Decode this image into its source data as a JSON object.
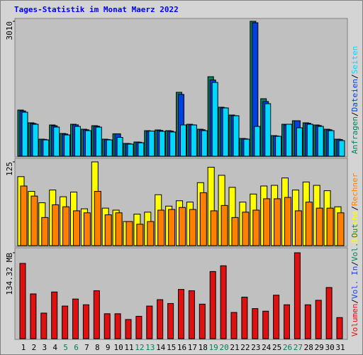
{
  "chart_data": {
    "type": "bar",
    "title": "Tages-Statistik im Monat Maerz 2022",
    "legend_separator": "/",
    "categories": [
      "1",
      "2",
      "3",
      "4",
      "5",
      "6",
      "7",
      "8",
      "9",
      "10",
      "11",
      "12",
      "13",
      "14",
      "15",
      "16",
      "17",
      "18",
      "19",
      "20",
      "21",
      "22",
      "23",
      "24",
      "25",
      "26",
      "27",
      "28",
      "29",
      "30",
      "31"
    ],
    "category_colors": [
      "#000000",
      "#000000",
      "#000000",
      "#000000",
      "#00805a",
      "#00805a",
      "#000000",
      "#000000",
      "#000000",
      "#000000",
      "#000000",
      "#00805a",
      "#00805a",
      "#000000",
      "#000000",
      "#000000",
      "#000000",
      "#000000",
      "#00805a",
      "#00805a",
      "#000000",
      "#000000",
      "#000000",
      "#000000",
      "#000000",
      "#00805a",
      "#00805a",
      "#000000",
      "#000000",
      "#000000",
      "#000000"
    ],
    "panels": [
      {
        "ylim": [
          0,
          3010
        ],
        "yticks": [
          3010
        ],
        "series": [
          {
            "name": "Anfragen",
            "color": "#008060",
            "values": [
              1030,
              745,
              380,
              697,
              507,
              713,
              602,
              681,
              380,
              500,
              285,
              317,
              570,
              586,
              570,
              1426,
              713,
              602,
              1774,
              1093,
              919,
              396,
              3010,
              1283,
              459,
              713,
              792,
              745,
              697,
              602,
              380
            ]
          },
          {
            "name": "Dateien",
            "color": "#0040e0",
            "values": [
              1010,
              730,
              375,
              680,
              495,
              700,
              590,
              670,
              372,
              500,
              280,
              312,
              560,
              575,
              560,
              1378,
              700,
              590,
              1700,
              1080,
              905,
              390,
              2978,
              1220,
              450,
              700,
              792,
              735,
              685,
              590,
              372
            ]
          },
          {
            "name": "Seiten",
            "color": "#00d8ff",
            "values": [
              982,
              713,
              364,
              650,
              475,
              665,
              570,
              650,
              364,
              420,
              270,
              300,
              560,
              555,
              540,
              697,
              697,
              570,
              1647,
              1077,
              903,
              380,
              665,
              1172,
              444,
              713,
              634,
              713,
              665,
              570,
              348
            ]
          }
        ]
      },
      {
        "ylim": [
          0,
          125
        ],
        "yticks": [
          125
        ],
        "series": [
          {
            "name": "Besuche",
            "color": "#ffff00",
            "values": [
              103,
              81,
              64,
              83,
              73,
              80,
              55,
              125,
              56,
              53,
              36,
              47,
              50,
              76,
              59,
              67,
              65,
              94,
              117,
              105,
              87,
              65,
              77,
              89,
              90,
              101,
              83,
              95,
              90,
              82,
              58
            ]
          },
          {
            "name": "Rechner",
            "color": "#ff8000",
            "values": [
              89,
              74,
              42,
              61,
              58,
              52,
              49,
              81,
              46,
              49,
              36,
              32,
              36,
              53,
              54,
              57,
              54,
              79,
              52,
              60,
              42,
              50,
              53,
              70,
              70,
              72,
              52,
              65,
              56,
              56,
              49
            ]
          }
        ]
      },
      {
        "ylim": [
          0,
          134.32
        ],
        "yticks": [
          {
            "value": 134.32,
            "label": "134.32 MB"
          }
        ],
        "series": [
          {
            "name": "Volumen",
            "color": "#e01010",
            "values": [
              117.7,
              70,
              40,
              73,
              51,
              62,
              53,
              75,
              39,
              39,
              30,
              35,
              51,
              61,
              55,
              77,
              75,
              54,
              105,
              114,
              41,
              65,
              47,
              43,
              68,
              53,
              134.32,
              53,
              60,
              80,
              33
            ]
          },
          {
            "name": "Vol. In",
            "color": "#2040e0"
          },
          {
            "name": "Vol. Out",
            "color": "#00805a"
          }
        ]
      }
    ]
  }
}
